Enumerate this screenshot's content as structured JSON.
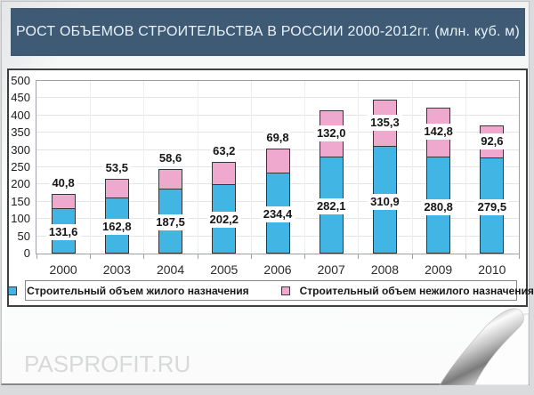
{
  "header": {
    "title": "РОСТ ОБЪЕМОВ СТРОИТЕЛЬСТВА В РОССИИ 2000-2012гг. (млн. куб. м)"
  },
  "watermark": "PASPROFIT.RU",
  "colors": {
    "header_bg": "#3e5a75",
    "header_text": "#e9f2f9",
    "residential": "#41b5e4",
    "nonresidential": "#efa9cf",
    "bar_border": "#33373a"
  },
  "chart_data": {
    "type": "bar",
    "stacked": true,
    "title": "РОСТ ОБЪЕМОВ СТРОИТЕЛЬСТВА В РОССИИ 2000-2012гг. (млн. куб. м)",
    "categories": [
      "2000",
      "2003",
      "2004",
      "2005",
      "2006",
      "2007",
      "2008",
      "2009",
      "2010"
    ],
    "series": [
      {
        "name": "Строительный объем жилого назначения",
        "color": "#41b5e4",
        "values": [
          131.6,
          162.8,
          187.5,
          202.2,
          234.4,
          282.1,
          310.9,
          280.8,
          279.5
        ],
        "labels": [
          "131,6",
          "162,8",
          "187,5",
          "202,2",
          "234,4",
          "282,1",
          "310,9",
          "280,8",
          "279,5"
        ]
      },
      {
        "name": "Строительный объем нежилого назначения",
        "color": "#efa9cf",
        "values": [
          40.8,
          53.5,
          58.6,
          63.2,
          69.8,
          132.0,
          135.3,
          142.8,
          92.6
        ],
        "labels": [
          "40,8",
          "53,5",
          "58,6",
          "63,2",
          "69,8",
          "132,0",
          "135,3",
          "142,8",
          "92,6"
        ]
      }
    ],
    "xlabel": "",
    "ylabel": "",
    "ylim": [
      0,
      500
    ],
    "ytick_step": 50,
    "grid": true,
    "legend_position": "bottom"
  }
}
